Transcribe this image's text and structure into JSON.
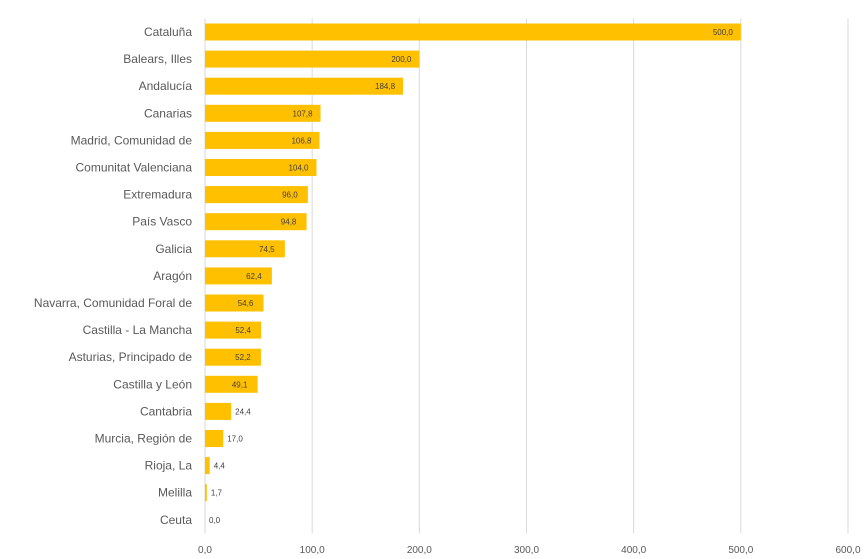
{
  "chart_data": {
    "type": "bar",
    "orientation": "horizontal",
    "title": "",
    "xlabel": "",
    "ylabel": "",
    "categories": [
      "Cataluña",
      "Balears, Illes",
      "Andalucía",
      "Canarias",
      "Madrid, Comunidad de",
      "Comunitat Valenciana",
      "Extremadura",
      "País Vasco",
      "Galicia",
      "Aragón",
      "Navarra, Comunidad Foral de",
      "Castilla - La Mancha",
      "Asturias, Principado de",
      "Castilla y León",
      "Cantabria",
      "Murcia, Región de",
      "Rioja, La",
      "Melilla",
      "Ceuta"
    ],
    "values": [
      500.0,
      200.0,
      184.8,
      107.8,
      106.8,
      104.0,
      96.0,
      94.8,
      74.5,
      62.4,
      54.6,
      52.4,
      52.2,
      49.1,
      24.4,
      17.0,
      4.4,
      1.7,
      0.0
    ],
    "value_labels": [
      "500,0",
      "200,0",
      "184,8",
      "107,8",
      "106,8",
      "104,0",
      "96,0",
      "94,8",
      "74,5",
      "62,4",
      "54,6",
      "52,4",
      "52,2",
      "49,1",
      "24,4",
      "17,0",
      "4,4",
      "1,7",
      "0,0"
    ],
    "xlim": [
      0,
      600
    ],
    "ticks": [
      0,
      100,
      200,
      300,
      400,
      500,
      600
    ],
    "tick_labels": [
      "0,0",
      "100,0",
      "200,0",
      "300,0",
      "400,0",
      "500,0",
      "600,0"
    ],
    "grid": true,
    "legend": "none",
    "bar_color": "#FFC000"
  }
}
